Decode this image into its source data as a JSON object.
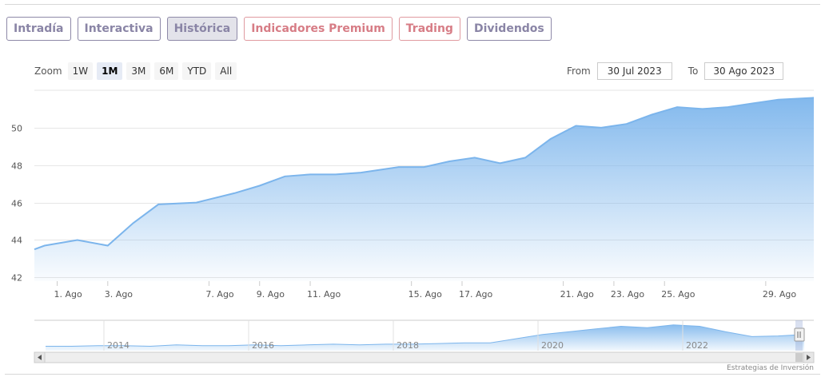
{
  "tabs": [
    {
      "label": "Intradía",
      "state": "default"
    },
    {
      "label": "Interactiva",
      "state": "default"
    },
    {
      "label": "Histórica",
      "state": "active"
    },
    {
      "label": "Indicadores Premium",
      "state": "premium"
    },
    {
      "label": "Trading",
      "state": "premium"
    },
    {
      "label": "Dividendos",
      "state": "default"
    }
  ],
  "zoom": {
    "label": "Zoom",
    "buttons": [
      "1W",
      "1M",
      "3M",
      "6M",
      "YTD",
      "All"
    ],
    "selected": "1M"
  },
  "range": {
    "from_label": "From",
    "from_value": "30 Jul 2023",
    "to_label": "To",
    "to_value": "30 Ago 2023"
  },
  "credit": "Estrategias de Inversión",
  "colors": {
    "line": "#7cb5ec",
    "area_top": "#7cb5ec",
    "tab_border": "#8e89a8",
    "premium_border": "#e09aa0"
  },
  "chart_data": {
    "type": "area",
    "ylim": [
      41.8,
      52
    ],
    "y_ticks": [
      42,
      44,
      46,
      48,
      50
    ],
    "x_ticks": [
      {
        "label": "1. Ago",
        "x": 1
      },
      {
        "label": "3. Ago",
        "x": 3
      },
      {
        "label": "7. Ago",
        "x": 7
      },
      {
        "label": "9. Ago",
        "x": 9
      },
      {
        "label": "11. Ago",
        "x": 11
      },
      {
        "label": "15. Ago",
        "x": 15
      },
      {
        "label": "17. Ago",
        "x": 17
      },
      {
        "label": "21. Ago",
        "x": 21
      },
      {
        "label": "23. Ago",
        "x": 23
      },
      {
        "label": "25. Ago",
        "x": 25
      },
      {
        "label": "29. Ago",
        "x": 29
      }
    ],
    "xlim": [
      0.1,
      30.9
    ],
    "series": [
      {
        "x": [
          0.1,
          0.5,
          1.8,
          3.0,
          4.0,
          5.0,
          6.5,
          8.0,
          9.0,
          10.0,
          11.0,
          12.0,
          13.0,
          14.5,
          15.5,
          16.5,
          17.5,
          18.5,
          19.5,
          20.5,
          21.5,
          22.5,
          23.5,
          24.5,
          25.5,
          26.5,
          27.5,
          28.5,
          29.5,
          30.9
        ],
        "values": [
          43.5,
          43.7,
          44.0,
          43.7,
          44.9,
          45.9,
          46.0,
          46.5,
          46.9,
          47.4,
          47.5,
          47.5,
          47.6,
          47.9,
          47.9,
          48.2,
          48.4,
          48.1,
          48.4,
          49.4,
          50.1,
          50.0,
          50.2,
          50.7,
          51.1,
          51.0,
          51.1,
          51.3,
          51.5,
          51.6
        ]
      }
    ],
    "navigator": {
      "labels": [
        "2014",
        "2016",
        "2018",
        "2020",
        "2022"
      ],
      "values": [
        41,
        41,
        42,
        42,
        41,
        43,
        42,
        42,
        43,
        42,
        43,
        44,
        43,
        44,
        44,
        45,
        46,
        46,
        52,
        58,
        62,
        66,
        70,
        68,
        72,
        70,
        62,
        55,
        56,
        58
      ]
    }
  }
}
